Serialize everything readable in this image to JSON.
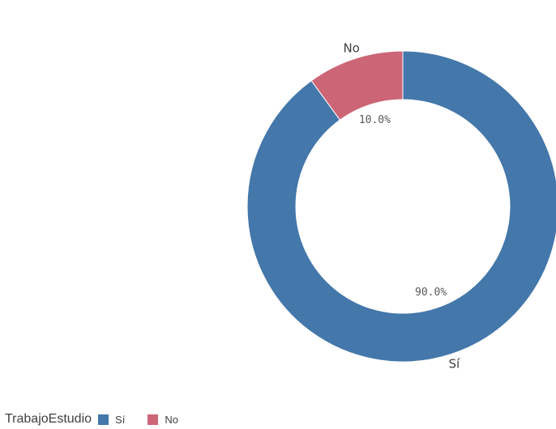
{
  "chart_data": {
    "type": "pie",
    "donut": true,
    "slices": [
      {
        "label": "Sí",
        "value": 90.0,
        "pct_label": "90.0%",
        "color": "#4477aa"
      },
      {
        "label": "No",
        "value": 10.0,
        "pct_label": "10.0%",
        "color": "#cc6677"
      }
    ],
    "legend": {
      "title": "TrabajoEstudio",
      "position": "bottom-left",
      "items": [
        {
          "label": "Sí",
          "color": "#4477aa"
        },
        {
          "label": "No",
          "color": "#cc6677"
        }
      ]
    }
  }
}
